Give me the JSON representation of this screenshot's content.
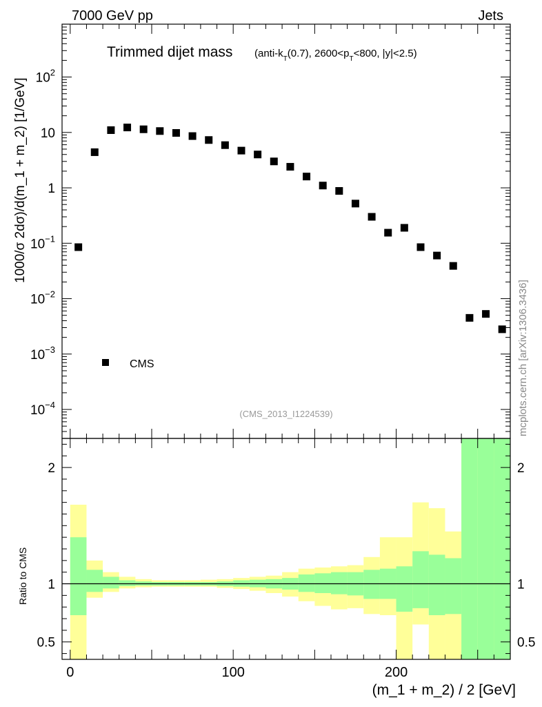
{
  "header": {
    "left": "7000 GeV pp",
    "right": "Jets",
    "side_label": "mcplots.cern.ch [arXiv:1306.3436]"
  },
  "chart_data": {
    "type": "scatter",
    "title": "Trimmed dijet mass",
    "subtitle": "(anti-kT(0.7), 2600<pT<800, |y|<2.5)",
    "analysis_tag": "(CMS_2013_I1224539)",
    "ylabel": "1000/σ 2dσ)/d(m_1 + m_2) [1/GeV]",
    "xlabel": "(m_1 + m_2) / 2 [GeV]",
    "ratio_ylabel": "Ratio to CMS",
    "xlim": [
      -5,
      270
    ],
    "ylim": [
      3e-05,
      900
    ],
    "yscale": "log",
    "ratio_ylim": [
      0.35,
      2.25
    ],
    "x_ticks": [
      0,
      100,
      200
    ],
    "y_ticks": [
      {
        "value": 0.0001,
        "base": "10",
        "exp": "−4"
      },
      {
        "value": 0.001,
        "base": "10",
        "exp": "−3"
      },
      {
        "value": 0.01,
        "base": "10",
        "exp": "−2"
      },
      {
        "value": 0.1,
        "base": "10",
        "exp": "−1"
      },
      {
        "value": 1,
        "base": "1",
        "exp": ""
      },
      {
        "value": 10,
        "base": "10",
        "exp": ""
      },
      {
        "value": 100,
        "base": "10",
        "exp": "2"
      }
    ],
    "ratio_ticks": [
      0.5,
      1,
      2
    ],
    "legend": {
      "label": "CMS",
      "position": "bottom-left"
    },
    "series": [
      {
        "name": "CMS",
        "x": [
          5,
          15,
          25,
          35,
          45,
          55,
          65,
          75,
          85,
          95,
          105,
          115,
          125,
          135,
          145,
          155,
          165,
          175,
          185,
          195,
          205,
          215,
          225,
          235,
          245,
          255,
          265
        ],
        "y": [
          0.085,
          4.4,
          11,
          12.3,
          11.4,
          10.6,
          9.8,
          8.6,
          7.3,
          5.9,
          4.7,
          4.0,
          3.0,
          2.4,
          1.6,
          1.1,
          0.88,
          0.52,
          0.3,
          0.155,
          0.19,
          0.085,
          0.06,
          0.039,
          0.0045,
          0.0053,
          0.0028
        ]
      }
    ],
    "ratio_bands": {
      "bins": [
        [
          0,
          10
        ],
        [
          10,
          20
        ],
        [
          20,
          30
        ],
        [
          30,
          40
        ],
        [
          40,
          50
        ],
        [
          50,
          60
        ],
        [
          60,
          70
        ],
        [
          70,
          80
        ],
        [
          80,
          90
        ],
        [
          90,
          100
        ],
        [
          100,
          110
        ],
        [
          110,
          120
        ],
        [
          120,
          130
        ],
        [
          130,
          140
        ],
        [
          140,
          150
        ],
        [
          150,
          160
        ],
        [
          160,
          170
        ],
        [
          170,
          180
        ],
        [
          180,
          190
        ],
        [
          190,
          200
        ],
        [
          200,
          210
        ],
        [
          210,
          220
        ],
        [
          220,
          230
        ],
        [
          230,
          240
        ],
        [
          240,
          250
        ],
        [
          250,
          260
        ],
        [
          260,
          270
        ]
      ],
      "inner_low": [
        0.73,
        0.93,
        0.96,
        0.98,
        0.985,
        0.985,
        0.985,
        0.985,
        0.985,
        0.98,
        0.975,
        0.97,
        0.96,
        0.95,
        0.93,
        0.92,
        0.91,
        0.9,
        0.87,
        0.87,
        0.76,
        0.79,
        0.73,
        0.74,
        0.35,
        0.35,
        0.35
      ],
      "inner_high": [
        1.4,
        1.12,
        1.06,
        1.03,
        1.02,
        1.015,
        1.015,
        1.015,
        1.015,
        1.02,
        1.03,
        1.035,
        1.04,
        1.05,
        1.08,
        1.09,
        1.1,
        1.1,
        1.12,
        1.13,
        1.15,
        1.28,
        1.25,
        1.22,
        2.25,
        2.25,
        2.25
      ],
      "outer_low": [
        0.35,
        0.88,
        0.93,
        0.96,
        0.97,
        0.975,
        0.975,
        0.975,
        0.975,
        0.965,
        0.955,
        0.94,
        0.92,
        0.89,
        0.85,
        0.81,
        0.78,
        0.79,
        0.74,
        0.73,
        0.35,
        0.65,
        0.35,
        0.35,
        0.35,
        0.35,
        0.35
      ],
      "outer_high": [
        1.68,
        1.2,
        1.1,
        1.06,
        1.04,
        1.03,
        1.03,
        1.03,
        1.035,
        1.04,
        1.05,
        1.06,
        1.07,
        1.1,
        1.13,
        1.14,
        1.15,
        1.16,
        1.23,
        1.4,
        1.4,
        1.7,
        1.65,
        1.45,
        2.25,
        2.25,
        2.25
      ],
      "inner_color": "#99ff99",
      "outer_color": "#ffff99"
    }
  }
}
